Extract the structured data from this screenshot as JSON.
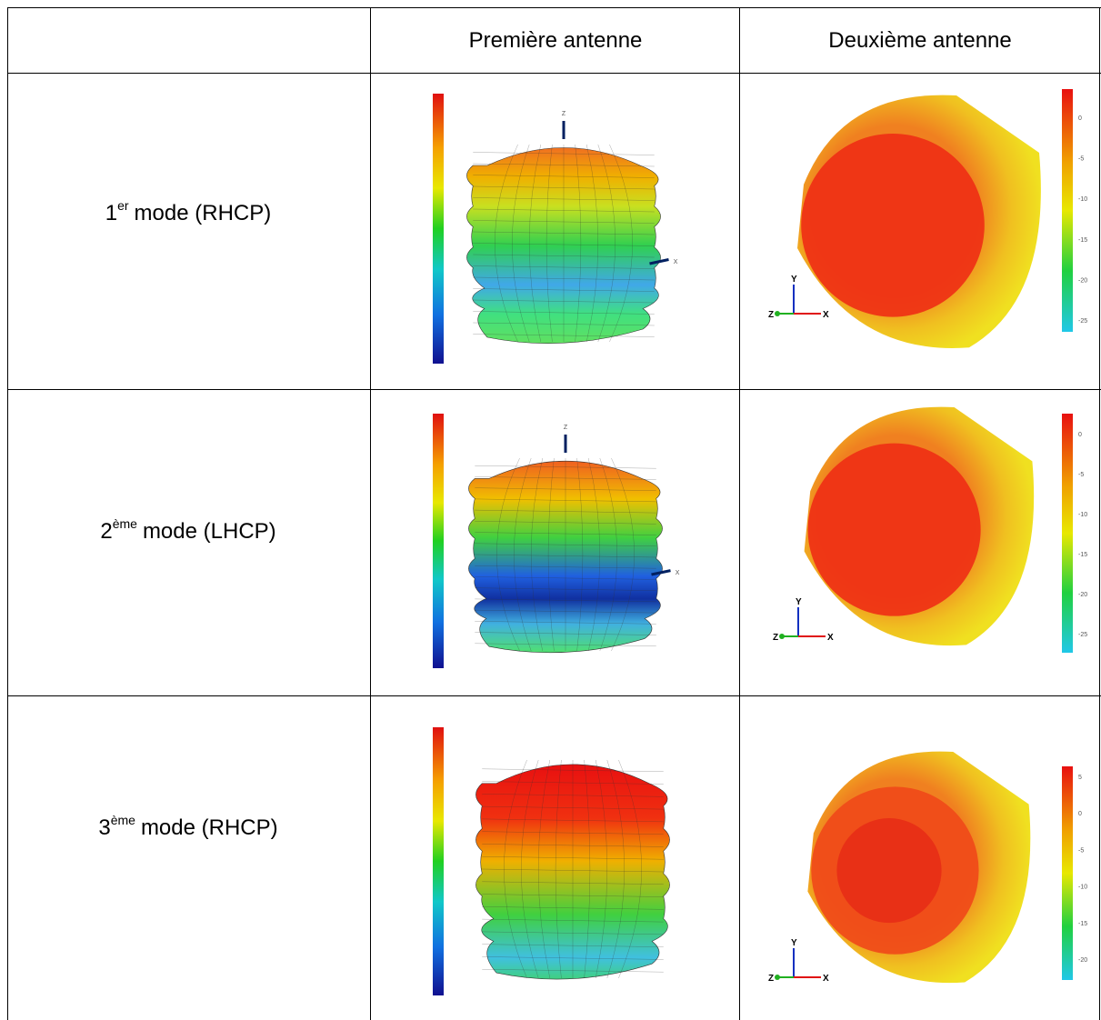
{
  "header": {
    "columns": [
      "Première antenne",
      "Deuxième antenne"
    ]
  },
  "axes": [
    "Z",
    "Y",
    "X"
  ],
  "rows": [
    {
      "ordinal": "1",
      "suffix": "er",
      "label": "mode (RHCP)",
      "colorbar_ticks": [
        "0",
        "-5",
        "-10",
        "-15",
        "-20",
        "-25"
      ]
    },
    {
      "ordinal": "2",
      "suffix": "ème",
      "label": "mode (LHCP)",
      "colorbar_ticks": [
        "0",
        "-5",
        "-10",
        "-15",
        "-20",
        "-25"
      ]
    },
    {
      "ordinal": "3",
      "suffix": "ème",
      "label": "mode (RHCP)",
      "colorbar_ticks": [
        "5",
        "0",
        "-5",
        "-10",
        "-15",
        "-20"
      ]
    }
  ]
}
